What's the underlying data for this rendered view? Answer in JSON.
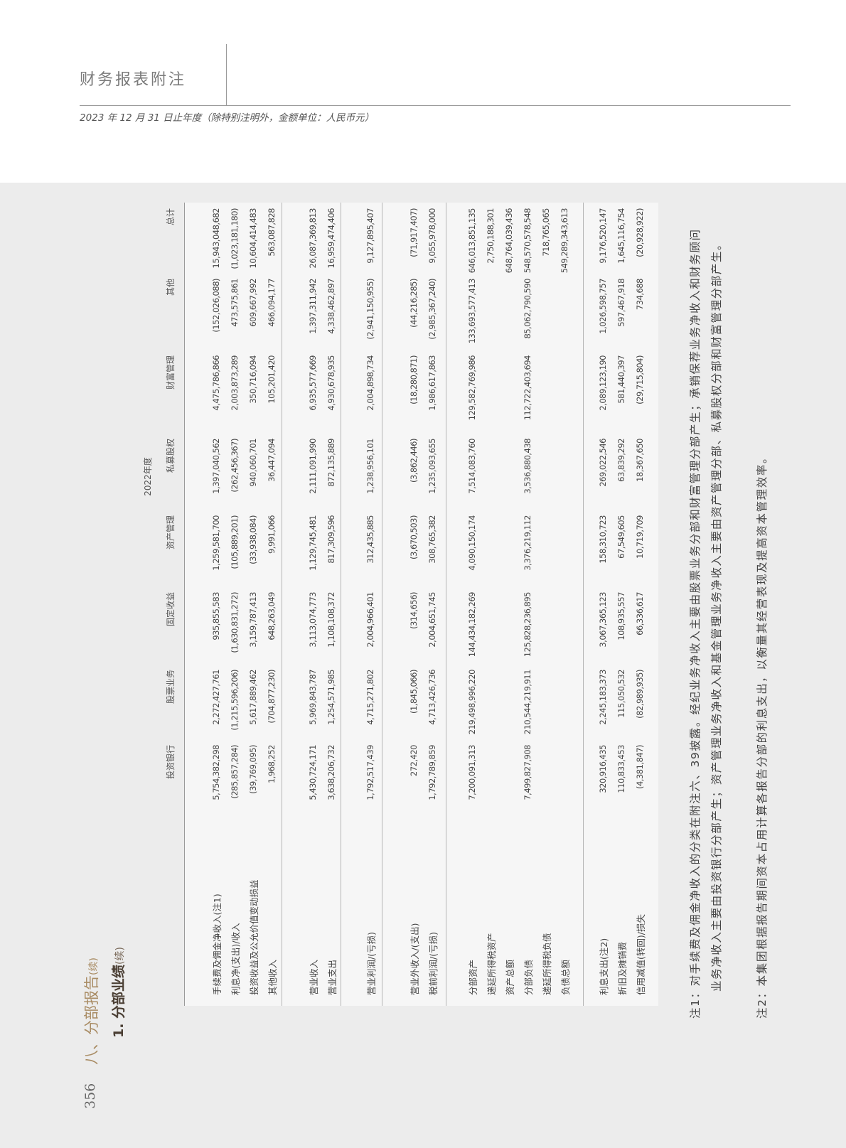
{
  "header": {
    "title": "财务报表附注",
    "subtitle": "2023 年 12 月 31 日止年度（除特别注明外，金额单位：人民币元）"
  },
  "page_number": "356",
  "section": {
    "title": "八、分部报告",
    "cont": "(续)"
  },
  "subsection": {
    "title": "1.  分部业绩",
    "cont": "(续)"
  },
  "table": {
    "year": "2022年度",
    "columns": [
      "投资银行",
      "股票业务",
      "固定收益",
      "资产管理",
      "私募股权",
      "财富管理",
      "其他",
      "总计"
    ],
    "groups": [
      [
        {
          "label": "手续费及佣金净收入(注1)",
          "values": [
            "5,754,382,298",
            "2,272,427,761",
            "935,855,583",
            "1,259,581,700",
            "1,397,040,562",
            "4,475,786,866",
            "(152,026,088)",
            "15,943,048,682"
          ]
        },
        {
          "label": "利息净(支出)/收入",
          "values": [
            "(285,857,284)",
            "(1,215,596,206)",
            "(1,630,831,272)",
            "(105,889,201)",
            "(262,456,367)",
            "2,003,873,289",
            "473,575,861",
            "(1,023,181,180)"
          ]
        },
        {
          "label": "投资收益及公允价值变动损益",
          "values": [
            "(39,769,095)",
            "5,617,889,462",
            "3,159,787,413",
            "(33,938,084)",
            "940,060,701",
            "350,716,094",
            "609,667,992",
            "10,604,414,483"
          ]
        },
        {
          "label": "其他收入",
          "values": [
            "1,968,252",
            "(704,877,230)",
            "648,263,049",
            "9,991,066",
            "36,447,094",
            "105,201,420",
            "466,094,177",
            "563,087,828"
          ]
        }
      ],
      [
        {
          "label": "营业收入",
          "values": [
            "5,430,724,171",
            "5,969,843,787",
            "3,113,074,773",
            "1,129,745,481",
            "2,111,091,990",
            "6,935,577,669",
            "1,397,311,942",
            "26,087,369,813"
          ]
        },
        {
          "label": "营业支出",
          "values": [
            "3,638,206,732",
            "1,254,571,985",
            "1,108,108,372",
            "817,309,596",
            "872,135,889",
            "4,930,678,935",
            "4,338,462,897",
            "16,959,474,406"
          ]
        }
      ],
      [
        {
          "label": "营业利润/(亏损)",
          "values": [
            "1,792,517,439",
            "4,715,271,802",
            "2,004,966,401",
            "312,435,885",
            "1,238,956,101",
            "2,004,898,734",
            "(2,941,150,955)",
            "9,127,895,407"
          ]
        }
      ],
      [
        {
          "label": "营业外收入/(支出)",
          "values": [
            "272,420",
            "(1,845,066)",
            "(314,656)",
            "(3,670,503)",
            "(3,862,446)",
            "(18,280,871)",
            "(44,216,285)",
            "(71,917,407)"
          ]
        },
        {
          "label": "税前利润/(亏损)",
          "values": [
            "1,792,789,859",
            "4,713,426,736",
            "2,004,651,745",
            "308,765,382",
            "1,235,093,655",
            "1,986,617,863",
            "(2,985,367,240)",
            "9,055,978,000"
          ]
        }
      ],
      [
        {
          "label": "分部资产",
          "values": [
            "7,200,091,313",
            "219,498,996,220",
            "144,434,182,269",
            "4,090,150,174",
            "7,514,083,760",
            "129,582,769,986",
            "133,693,577,413",
            "646,013,851,135"
          ]
        },
        {
          "label": "递延所得税资产",
          "values": [
            "",
            "",
            "",
            "",
            "",
            "",
            "",
            "2,750,188,301"
          ]
        },
        {
          "label": "资产总额",
          "values": [
            "",
            "",
            "",
            "",
            "",
            "",
            "",
            "648,764,039,436"
          ]
        },
        {
          "label": "分部负债",
          "values": [
            "7,499,827,908",
            "210,544,219,911",
            "125,828,236,895",
            "3,376,219,112",
            "3,536,880,438",
            "112,722,403,694",
            "85,062,790,590",
            "548,570,578,548"
          ]
        },
        {
          "label": "递延所得税负债",
          "values": [
            "",
            "",
            "",
            "",
            "",
            "",
            "",
            "718,765,065"
          ]
        },
        {
          "label": "负债总额",
          "values": [
            "",
            "",
            "",
            "",
            "",
            "",
            "",
            "549,289,343,613"
          ]
        }
      ],
      [
        {
          "label": "利息支出(注2)",
          "values": [
            "320,916,435",
            "2,245,183,373",
            "3,067,365,123",
            "158,310,723",
            "269,022,546",
            "2,089,123,190",
            "1,026,598,757",
            "9,176,520,147"
          ]
        },
        {
          "label": "折旧及摊销费",
          "values": [
            "110,833,453",
            "115,050,532",
            "108,935,557",
            "67,549,605",
            "63,839,292",
            "581,440,397",
            "597,467,918",
            "1,645,116,754"
          ]
        },
        {
          "label": "信用减值(转回)/损失",
          "values": [
            "(4,381,847)",
            "(82,989,935)",
            "66,336,617",
            "10,719,709",
            "18,367,650",
            "(29,715,804)",
            "734,688",
            "(20,928,922)"
          ]
        }
      ]
    ]
  },
  "notes": {
    "note1_line1": "注1：对手续费及佣金净收入的分类在附注六、39披露。经纪业务净收入主要由股票业务分部和财富管理分部产生；承销保荐业务净收入和财务顾问",
    "note1_line2": "业务净收入主要由投资银行分部产生；资产管理业务净收入和基金管理业务净收入主要由资产管理分部、私募股权分部和财富管理分部产生。",
    "note2": "注2：本集团根据报告期间资本占用计算各报告分部的利息支出，以衡量其经营表现及提高资本管理效率。"
  },
  "colors": {
    "accent_gold": "#a98c64",
    "background_gray": "#ececec",
    "table_bg": "#f6f6f6"
  }
}
